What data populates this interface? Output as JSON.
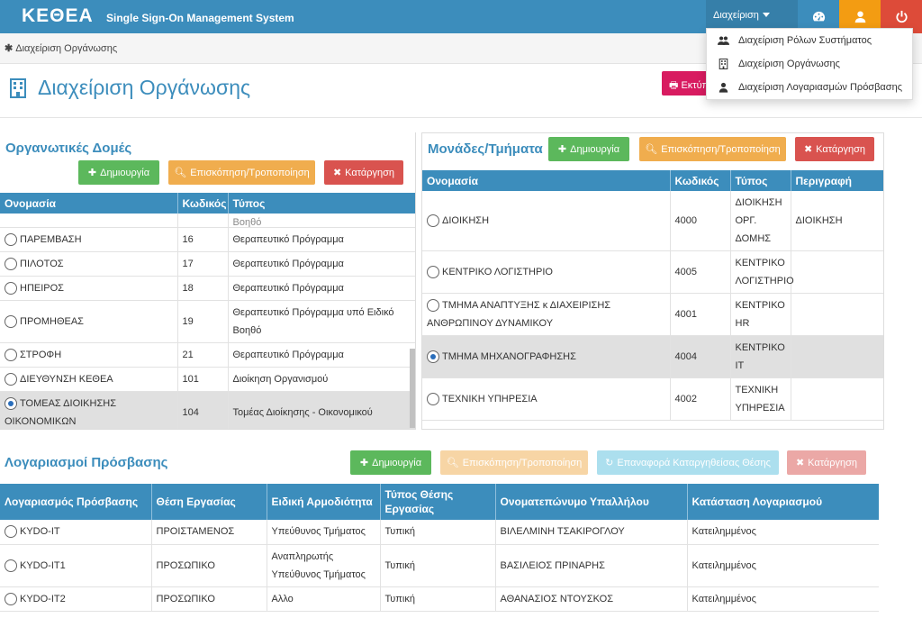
{
  "header": {
    "brand": "ΚΕΘΕΑ",
    "subtitle": "Single Sign-On Management System",
    "admin_menu_label": "Διαχείριση",
    "colors": {
      "primary": "#3c8dbc",
      "warning": "#f39c12",
      "danger": "#dd4b39"
    }
  },
  "dropdown": {
    "items": [
      {
        "label": "Διαχείριση Ρόλων Συστήματος",
        "icon": "users-icon"
      },
      {
        "label": "Διαχείριση Οργάνωσης",
        "icon": "building-icon"
      },
      {
        "label": "Διαχείριση Λογαριασμών Πρόσβασης",
        "icon": "user-icon"
      }
    ]
  },
  "breadcrumb": {
    "label": "Διαχείριση Οργάνωσης"
  },
  "page": {
    "title": "Διαχείριση Οργάνωσης",
    "print_label": "Εκτύπ"
  },
  "org_structures": {
    "title": "Οργανωτικές Δομές",
    "buttons": {
      "create": "Δημιουργία",
      "view": "Επισκόπηση/Τροποποίηση",
      "delete": "Κατάργηση"
    },
    "columns": [
      "Ονομασία",
      "Κωδικός",
      "Τύπος"
    ],
    "partial_row_type": "Βοηθό",
    "rows": [
      {
        "name": "ΠΑΡΕΜΒΑΣΗ",
        "code": "16",
        "type": "Θεραπευτικό Πρόγραμμα",
        "selected": false
      },
      {
        "name": "ΠΙΛΟΤΟΣ",
        "code": "17",
        "type": "Θεραπευτικό Πρόγραμμα",
        "selected": false
      },
      {
        "name": "ΗΠΕΙΡΟΣ",
        "code": "18",
        "type": "Θεραπευτικό Πρόγραμμα",
        "selected": false
      },
      {
        "name": "ΠΡΟΜΗΘΕΑΣ",
        "code": "19",
        "type": "Θεραπευτικό Πρόγραμμα υπό Ειδικό Βοηθό",
        "selected": false
      },
      {
        "name": "ΣΤΡΟΦΗ",
        "code": "21",
        "type": "Θεραπευτικό Πρόγραμμα",
        "selected": false
      },
      {
        "name": "ΔΙΕΥΘΥΝΣΗ ΚΕΘΕΑ",
        "code": "101",
        "type": "Διοίκηση Οργανισμού",
        "selected": false
      },
      {
        "name": "ΤΟΜΕΑΣ ΔΙΟΙΚΗΣΗΣ ΟΙΚΟΝΟΜΙΚΩΝ",
        "code": "104",
        "type": "Τομέας Διοίκησης - Οικονομικού",
        "selected": true
      }
    ]
  },
  "units": {
    "title": "Μονάδες/Τμήματα",
    "buttons": {
      "create": "Δημιουργία",
      "view": "Επισκόπηση/Τροποποίηση",
      "delete": "Κατάργηση"
    },
    "columns": [
      "Ονομασία",
      "Κωδικός",
      "Τύπος",
      "Περιγραφή"
    ],
    "rows": [
      {
        "name": "ΔΙΟΙΚΗΣΗ",
        "code": "4000",
        "type": "ΔΙΟΙΚΗΣΗ ΟΡΓ. ΔΟΜΗΣ",
        "desc": "ΔΙΟΙΚΗΣΗ",
        "selected": false
      },
      {
        "name": "ΚΕΝΤΡΙΚΟ ΛΟΓΙΣΤΗΡΙΟ",
        "code": "4005",
        "type": "ΚΕΝΤΡΙΚΟ ΛΟΓΙΣΤΗΡΙΟ",
        "desc": "",
        "selected": false
      },
      {
        "name": "ΤΜΗΜΑ ΑΝΑΠΤΥΞΗΣ κ ΔΙΑΧΕΙΡΙΣΗΣ ΑΝΘΡΩΠΙΝΟΥ ΔΥΝΑΜΙΚΟΥ",
        "code": "4001",
        "type": "ΚΕΝΤΡΙΚΟ HR",
        "desc": "",
        "selected": false
      },
      {
        "name": "ΤΜΗΜΑ ΜΗΧΑΝΟΓΡΑΦΗΣΗΣ",
        "code": "4004",
        "type": "ΚΕΝΤΡΙΚΟ IT",
        "desc": "",
        "selected": true
      },
      {
        "name": "ΤΕΧΝΙΚΗ ΥΠΗΡΕΣΙΑ",
        "code": "4002",
        "type": "ΤΕΧΝΙΚΗ ΥΠΗΡΕΣΙΑ",
        "desc": "",
        "selected": false
      }
    ]
  },
  "accounts": {
    "title": "Λογαριασμοί Πρόσβασης",
    "buttons": {
      "create": "Δημιουργία",
      "view": "Επισκόπηση/Τροποποίηση",
      "restore": "Επαναφορά Καταργηθείσας Θέσης",
      "delete": "Κατάργηση"
    },
    "columns": [
      "Λογαριασμός Πρόσβασης",
      "Θέση Εργασίας",
      "Ειδική Αρμοδιότητα",
      "Τύπος Θέσης Εργασίας",
      "Ονοματεπώνυμο Υπαλλήλου",
      "Κατάσταση Λογαριασμού"
    ],
    "rows": [
      {
        "account": "KYDO-IT",
        "position": "ΠΡΟΙΣΤΑΜΕΝΟΣ",
        "role": "Υπεύθυνος Τμήματος",
        "ptype": "Τυπική",
        "employee": "ΒΙΛΕΛΜΙΝΗ ΤΣΑΚΙΡΟΓΛΟΥ",
        "status": "Κατειλημμένος"
      },
      {
        "account": "KYDO-IT1",
        "position": "ΠΡΟΣΩΠΙΚΟ",
        "role": "Αναπληρωτής Υπεύθυνος Τμήματος",
        "ptype": "Τυπική",
        "employee": "ΒΑΣΙΛΕΙΟΣ ΠΡΙΝΑΡΗΣ",
        "status": "Κατειλημμένος"
      },
      {
        "account": "KYDO-IT2",
        "position": "ΠΡΟΣΩΠΙΚΟ",
        "role": "Αλλο",
        "ptype": "Τυπική",
        "employee": "ΑΘΑΝΑΣΙΟΣ ΝΤΟΥΣΚΟΣ",
        "status": "Κατειλημμένος"
      }
    ]
  }
}
